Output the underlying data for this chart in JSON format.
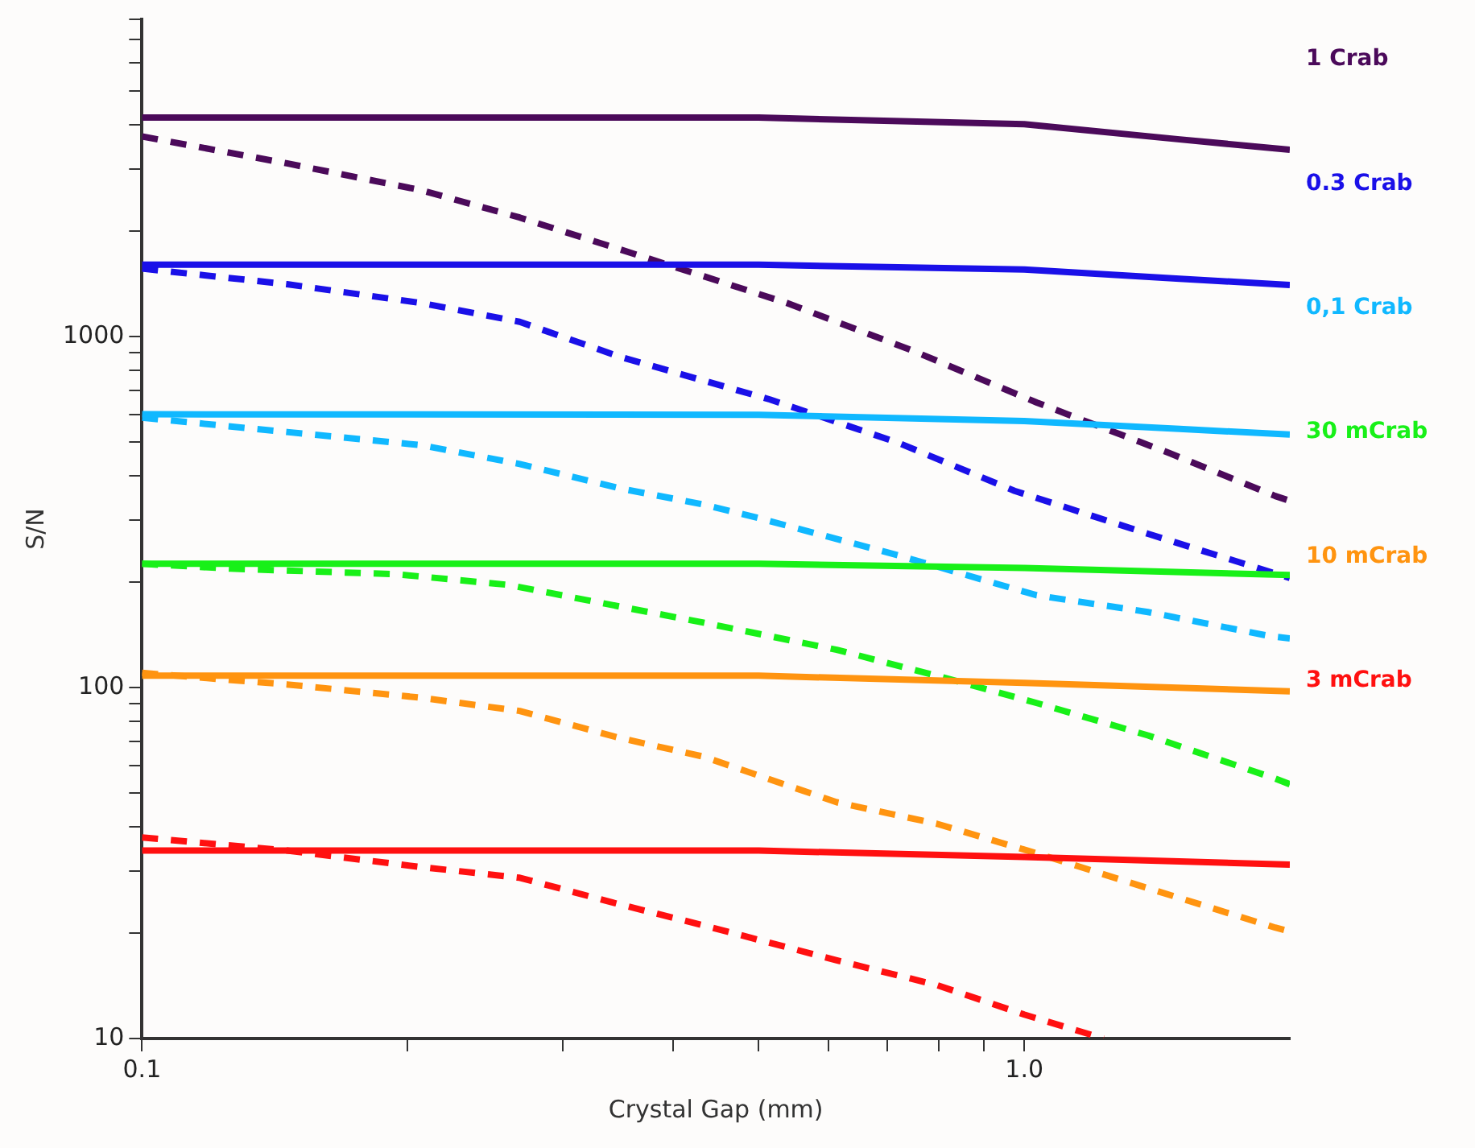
{
  "chart_data": {
    "type": "line",
    "xlabel": "Crystal Gap (mm)",
    "ylabel": "S/N",
    "log": "xy",
    "grid": false,
    "legend": "right",
    "marker": "none",
    "xlim": [
      0.1,
      2
    ],
    "xticks": [
      0.1,
      {
        "value": 0.2,
        "label": null
      },
      {
        "value": 0.3,
        "label": null
      },
      {
        "value": 0.4,
        "label": null
      },
      {
        "value": 0.5,
        "label": null
      },
      {
        "value": 0.6,
        "label": null
      },
      {
        "value": 0.7,
        "label": null
      },
      {
        "value": 0.8,
        "label": null
      },
      {
        "value": 0.9,
        "label": null
      },
      {
        "value": 1,
        "label": "1.0"
      }
    ],
    "ylim": [
      10,
      8000
    ],
    "yticks": [
      10,
      {
        "value": 20,
        "label": null
      },
      {
        "value": 30,
        "label": null
      },
      {
        "value": 40,
        "label": null
      },
      {
        "value": 50,
        "label": null
      },
      {
        "value": 60,
        "label": null
      },
      {
        "value": 70,
        "label": null
      },
      {
        "value": 80,
        "label": null
      },
      {
        "value": 90,
        "label": null
      },
      100,
      {
        "value": 200,
        "label": null
      },
      {
        "value": 300,
        "label": null
      },
      {
        "value": 400,
        "label": null
      },
      {
        "value": 500,
        "label": null
      },
      {
        "value": 600,
        "label": null
      },
      {
        "value": 700,
        "label": null
      },
      {
        "value": 800,
        "label": null
      },
      {
        "value": 900,
        "label": null
      },
      1000,
      {
        "value": 2000,
        "label": null
      },
      {
        "value": 3000,
        "label": null
      },
      {
        "value": 4000,
        "label": null
      },
      {
        "value": 5000,
        "label": null
      },
      {
        "value": 6000,
        "label": null
      },
      {
        "value": 7000,
        "label": null
      },
      {
        "value": 8000,
        "label": null
      }
    ],
    "series": [
      {
        "name": "1 Crab",
        "color": "#4b0a5a",
        "line_style": "solid",
        "x": [
          0.1,
          0.5,
          1.0,
          1.5,
          2.0
        ],
        "values": [
          4200,
          4200,
          4020,
          3640,
          3400
        ]
      },
      {
        "name": "0.3 Crab",
        "color": "#1a10e8",
        "line_style": "solid",
        "x": [
          0.1,
          0.5,
          1.0,
          1.5,
          2.0
        ],
        "values": [
          1600,
          1600,
          1550,
          1460,
          1400
        ]
      },
      {
        "name": "0,1 Crab",
        "color": "#10b8ff",
        "line_style": "solid",
        "x": [
          0.1,
          0.5,
          1.0,
          1.5,
          2.0
        ],
        "values": [
          600,
          598,
          574,
          545,
          525
        ]
      },
      {
        "name": "30 mCrab",
        "color": "#18f018",
        "line_style": "solid",
        "x": [
          0.1,
          0.5,
          1.0,
          2.0
        ],
        "values": [
          225,
          225,
          219,
          209
        ]
      },
      {
        "name": "10 mCrab",
        "color": "#ff9410",
        "line_style": "solid",
        "x": [
          0.1,
          0.5,
          1.0,
          2.0
        ],
        "values": [
          108,
          108,
          103,
          97.5
        ]
      },
      {
        "name": "3 mCrab",
        "color": "#ff1010",
        "line_style": "solid",
        "x": [
          0.1,
          0.5,
          1.0,
          2.0
        ],
        "values": [
          34.3,
          34.3,
          32.9,
          31.3
        ]
      },
      {
        "color": "#4b0a5a",
        "line_style": "dashed",
        "x": [
          0.1,
          0.146,
          0.207,
          0.268,
          0.348,
          0.538,
          0.751,
          1.033,
          1.464,
          1.925,
          2.0
        ],
        "values": [
          3710,
          3110,
          2610,
          2180,
          1770,
          1245,
          906,
          648,
          464,
          351,
          340
        ]
      },
      {
        "color": "#1a10e8",
        "line_style": "dashed",
        "x": [
          0.1,
          0.146,
          0.207,
          0.268,
          0.348,
          0.515,
          0.719,
          0.975,
          1.381,
          2.0
        ],
        "values": [
          1560,
          1408,
          1245,
          1100,
          875,
          661,
          498,
          363,
          274,
          205
        ]
      },
      {
        "color": "#10b8ff",
        "line_style": "dashed",
        "x": [
          0.1,
          0.146,
          0.207,
          0.268,
          0.348,
          0.433,
          0.499,
          0.719,
          1.033,
          1.381,
          1.9,
          2.0
        ],
        "values": [
          587,
          534,
          490,
          433,
          369,
          332,
          304,
          238,
          183,
          164,
          140,
          138
        ]
      },
      {
        "color": "#18f018",
        "line_style": "dashed",
        "x": [
          0.1,
          0.126,
          0.195,
          0.26,
          0.348,
          0.433,
          0.613,
          0.796,
          1.033,
          1.381,
          1.925,
          2.0
        ],
        "values": [
          225,
          218,
          210,
          196,
          170,
          153,
          128,
          108,
          90.3,
          73,
          55,
          53
        ]
      },
      {
        "color": "#ff9410",
        "line_style": "dashed",
        "x": [
          0.1,
          0.146,
          0.207,
          0.268,
          0.348,
          0.433,
          0.613,
          0.796,
          1.033,
          1.381,
          1.925,
          2.0
        ],
        "values": [
          110,
          102,
          93.5,
          85.7,
          71.8,
          63.5,
          47.1,
          40.9,
          33.7,
          26.8,
          20.7,
          20.2
        ]
      },
      {
        "color": "#ff1010",
        "line_style": "dashed",
        "x": [
          0.1,
          0.146,
          0.207,
          0.268,
          0.348,
          0.433,
          0.613,
          0.796,
          1.0,
          1.23
        ],
        "values": [
          37.4,
          34.3,
          30.8,
          28.7,
          24.1,
          21,
          16.7,
          14.2,
          11.7,
          10
        ]
      }
    ]
  }
}
